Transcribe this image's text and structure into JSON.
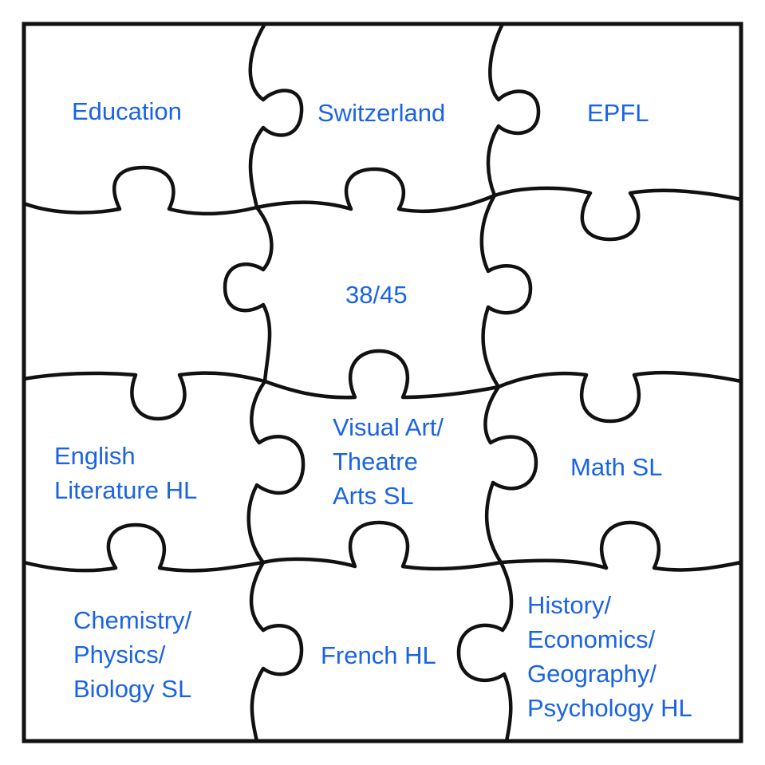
{
  "pieces": [
    {
      "id": "top-left",
      "lines": [
        "Education"
      ]
    },
    {
      "id": "top-center",
      "lines": [
        "Switzerland"
      ]
    },
    {
      "id": "top-right",
      "lines": [
        "EPFL"
      ]
    },
    {
      "id": "mid-upper-left",
      "lines": []
    },
    {
      "id": "center",
      "lines": [
        "38/45"
      ]
    },
    {
      "id": "mid-upper-right",
      "lines": []
    },
    {
      "id": "mid-lower-left",
      "lines": [
        "English",
        "Literature HL"
      ]
    },
    {
      "id": "mid-lower-center",
      "lines": [
        "Visual Art/",
        "Theatre",
        "Arts SL"
      ]
    },
    {
      "id": "mid-lower-right",
      "lines": [
        "Math SL"
      ]
    },
    {
      "id": "bottom-left",
      "lines": [
        "Chemistry/",
        "Physics/",
        "Biology SL"
      ]
    },
    {
      "id": "bottom-center",
      "lines": [
        "French HL"
      ]
    },
    {
      "id": "bottom-right",
      "lines": [
        "History/",
        "Economics/",
        "Geography/",
        "Psychology HL"
      ]
    }
  ],
  "colors": {
    "label": "#1a63e6",
    "outline": "#111111",
    "background": "#ffffff"
  }
}
